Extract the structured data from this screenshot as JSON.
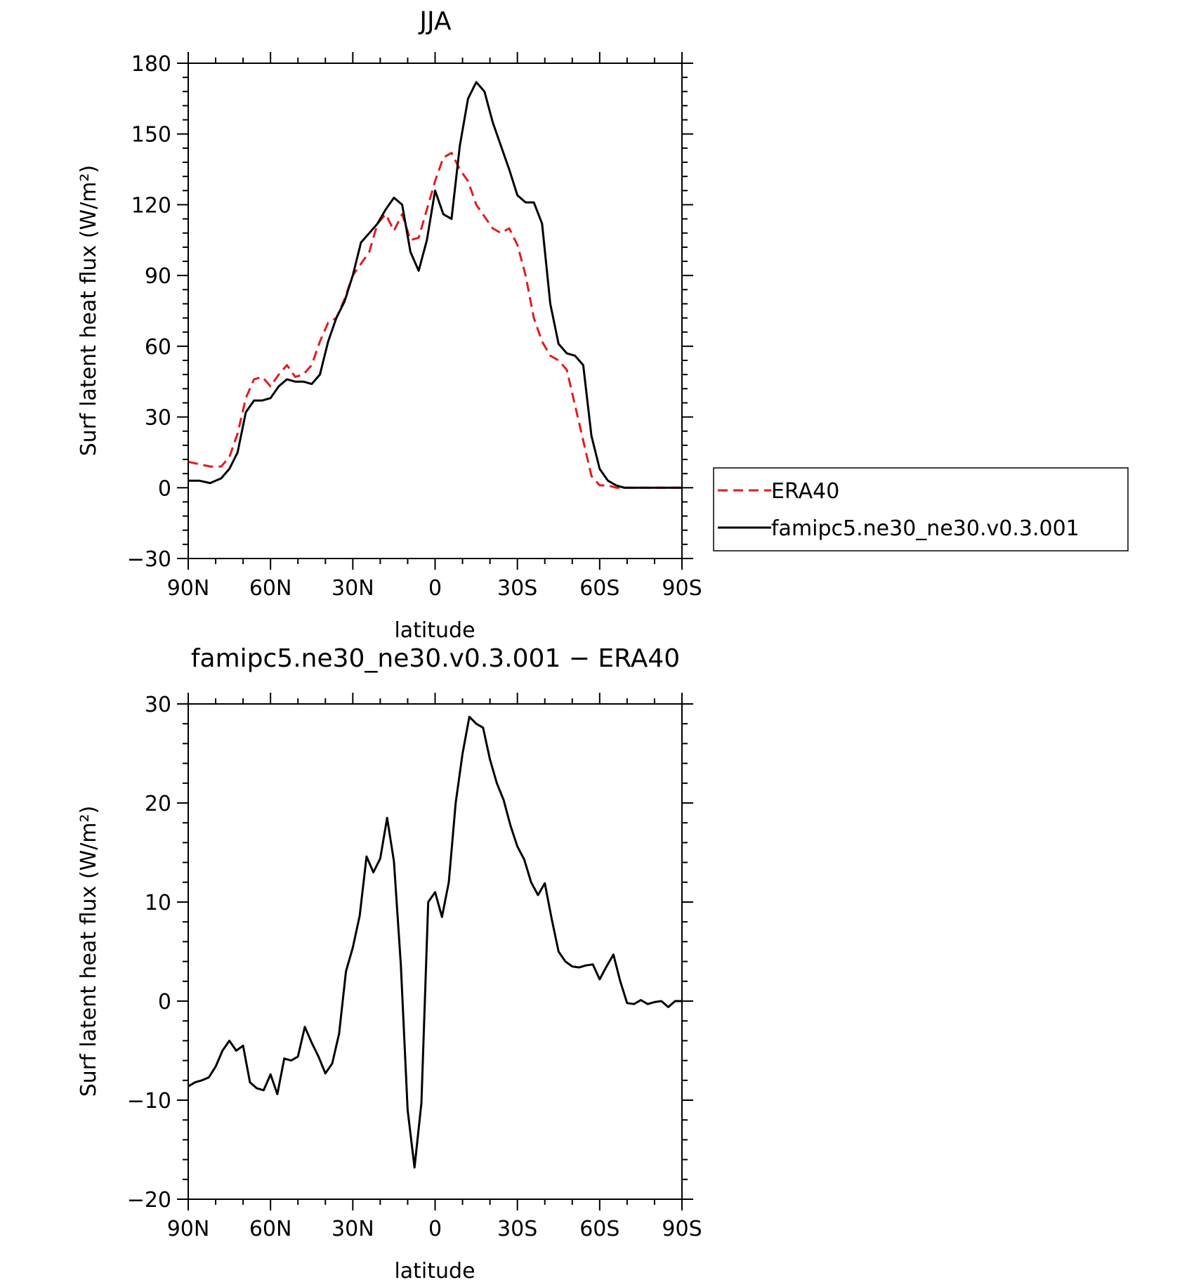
{
  "chart_data": [
    {
      "type": "line",
      "title": "JJA",
      "xlabel": "latitude",
      "ylabel": "Surf latent heat flux (W/m²)",
      "xlim": [
        90,
        -90
      ],
      "ylim": [
        -30,
        180
      ],
      "xticks": [
        90,
        60,
        30,
        0,
        -30,
        -60,
        -90
      ],
      "xtick_labels": [
        "90N",
        "60N",
        "30N",
        "0",
        "30S",
        "60S",
        "90S"
      ],
      "yticks": [
        -30,
        0,
        30,
        60,
        90,
        120,
        150,
        180
      ],
      "ytick_labels": [
        "−30",
        "0",
        "30",
        "60",
        "90",
        "120",
        "150",
        "180"
      ],
      "legend": "right",
      "series": [
        {
          "name": "ERA40",
          "color": "#e41a1c",
          "dash": "dashed",
          "x": [
            90,
            86,
            82,
            78,
            75,
            72,
            69,
            66,
            63,
            60,
            57,
            54,
            51,
            48,
            45,
            42,
            39,
            36,
            33,
            30,
            27,
            24,
            21,
            18,
            15,
            12,
            9,
            6,
            3,
            0,
            -3,
            -6,
            -9,
            -12,
            -15,
            -18,
            -21,
            -24,
            -27,
            -30,
            -33,
            -36,
            -39,
            -42,
            -45,
            -48,
            -51,
            -54,
            -57,
            -60,
            -63,
            -66,
            -69,
            -72,
            -75,
            -78,
            -81,
            -84,
            -87,
            -90
          ],
          "y": [
            11,
            10,
            9,
            9,
            13,
            23,
            38,
            46,
            47,
            43,
            48,
            52,
            47,
            48,
            52,
            62,
            70,
            72,
            80,
            90,
            95,
            100,
            112,
            116,
            109,
            116,
            105,
            106,
            118,
            130,
            140,
            142,
            135,
            130,
            120,
            115,
            110,
            108,
            110,
            103,
            90,
            72,
            62,
            56,
            54,
            50,
            35,
            20,
            5,
            1,
            1,
            0,
            0,
            0,
            0,
            0,
            0,
            0,
            0,
            0
          ]
        },
        {
          "name": "famipc5.ne30_ne30.v0.3.001",
          "color": "#000000",
          "dash": "solid",
          "x": [
            90,
            86,
            82,
            78,
            75,
            72,
            69,
            66,
            63,
            60,
            57,
            54,
            51,
            48,
            45,
            42,
            39,
            36,
            33,
            30,
            27,
            24,
            21,
            18,
            15,
            12,
            9,
            6,
            3,
            0,
            -3,
            -6,
            -9,
            -12,
            -15,
            -18,
            -21,
            -24,
            -27,
            -30,
            -33,
            -36,
            -39,
            -42,
            -45,
            -48,
            -51,
            -54,
            -57,
            -60,
            -63,
            -66,
            -69,
            -72,
            -75,
            -78,
            -81,
            -84,
            -87,
            -90
          ],
          "y": [
            3,
            3,
            2,
            4,
            8,
            15,
            32,
            37,
            37,
            38,
            43,
            46,
            45,
            45,
            44,
            48,
            62,
            72,
            79,
            90,
            104,
            108,
            112,
            118,
            123,
            120,
            100,
            92,
            105,
            126,
            116,
            114,
            145,
            165,
            172,
            168,
            155,
            145,
            135,
            124,
            121,
            121,
            112,
            78,
            61,
            57,
            56,
            52,
            22,
            8,
            3,
            1,
            0,
            0,
            0,
            0,
            0,
            0,
            0,
            0
          ]
        }
      ]
    },
    {
      "type": "line",
      "title": "famipc5.ne30_ne30.v0.3.001 − ERA40",
      "xlabel": "latitude",
      "ylabel": "Surf latent heat flux (W/m²)",
      "xlim": [
        90,
        -90
      ],
      "ylim": [
        -20,
        30
      ],
      "xticks": [
        90,
        60,
        30,
        0,
        -30,
        -60,
        -90
      ],
      "xtick_labels": [
        "90N",
        "60N",
        "30N",
        "0",
        "30S",
        "60S",
        "90S"
      ],
      "yticks": [
        -20,
        -10,
        0,
        10,
        20,
        30
      ],
      "ytick_labels": [
        "−20",
        "−10",
        "0",
        "10",
        "20",
        "30"
      ],
      "series": [
        {
          "color": "#000000",
          "dash": "solid",
          "x": [
            90,
            87.5,
            85,
            82.5,
            80,
            77.5,
            75,
            72.5,
            70,
            67.5,
            65,
            62.5,
            60,
            57.5,
            55,
            52.5,
            50,
            47.5,
            45,
            42.5,
            40,
            37.5,
            35,
            32.5,
            30,
            27.5,
            25,
            22.5,
            20,
            17.5,
            15,
            12.5,
            10,
            7.5,
            5,
            2.5,
            0,
            -2.5,
            -5,
            -7.5,
            -10,
            -12.5,
            -15,
            -17.5,
            -20,
            -22.5,
            -25,
            -27.5,
            -30,
            -32.5,
            -35,
            -37.5,
            -40,
            -42.5,
            -45,
            -47.5,
            -50,
            -52.5,
            -55,
            -57.5,
            -60,
            -62.5,
            -65,
            -67.5,
            -70,
            -72.5,
            -75,
            -77.5,
            -80,
            -82.5,
            -85,
            -87.5,
            -90
          ],
          "y": [
            -8.6,
            -8.2,
            -8.0,
            -7.7,
            -6.6,
            -5.0,
            -4.0,
            -5.0,
            -4.5,
            -8.2,
            -8.8,
            -9.0,
            -7.4,
            -9.4,
            -5.8,
            -6.0,
            -5.6,
            -2.6,
            -4.2,
            -5.6,
            -7.3,
            -6.3,
            -3.3,
            3.0,
            5.4,
            8.6,
            14.6,
            13.0,
            14.4,
            18.5,
            14.1,
            3.7,
            -11.0,
            -16.8,
            -10.3,
            10.0,
            11.0,
            8.5,
            12.0,
            20.0,
            25.0,
            28.7,
            28.0,
            27.6,
            24.4,
            22.0,
            20.3,
            17.7,
            15.6,
            14.3,
            12.0,
            10.7,
            11.9,
            8.3,
            5.0,
            4.0,
            3.5,
            3.4,
            3.6,
            3.7,
            2.2,
            3.5,
            4.7,
            2.0,
            -0.2,
            -0.3,
            0.1,
            -0.3,
            -0.1,
            0.0,
            -0.6,
            0.0,
            0.0
          ]
        }
      ]
    }
  ]
}
